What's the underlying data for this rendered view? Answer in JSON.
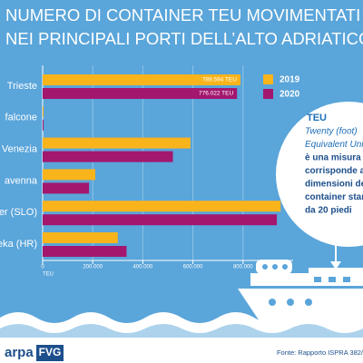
{
  "chart_data": {
    "type": "bar",
    "orientation": "horizontal",
    "title_lines": [
      "NUMERO DI CONTAINER TEU MOVIMENTATI",
      "NEI PRINCIPALI PORTI DELL’ALTO ADRIATICO"
    ],
    "categories": [
      "Trieste",
      "falcone",
      "Venezia",
      "avenna",
      "er (SLO)",
      "eka (HR)"
    ],
    "series": [
      {
        "name": "2019",
        "color": "#f9b41b",
        "values": [
          789594,
          1500,
          590000,
          210000,
          950000,
          300000
        ],
        "value_labels": [
          "789.594 TEU",
          null,
          null,
          null,
          null,
          null
        ]
      },
      {
        "name": "2020",
        "color": "#a3176e",
        "values": [
          776022,
          1000,
          520000,
          185000,
          935000,
          335000
        ],
        "value_labels": [
          "776.022 TEU",
          null,
          null,
          null,
          null,
          null
        ]
      }
    ],
    "xlim": [
      0,
      1000000
    ],
    "xticks": [
      0,
      {
        "value": 200000,
        "label": "200.000"
      },
      {
        "value": 400000,
        "label": "400.000"
      },
      {
        "value": 600000,
        "label": "600.000"
      },
      {
        "value": 800000,
        "label": "800.000"
      }
    ],
    "x_label": "TEU",
    "grid": true,
    "legend": "top-right",
    "annotation": {
      "heading": "TEU",
      "lines": [
        "Twenty (foot)",
        "Equivalent Uni",
        "è una misura c",
        "corrisponde al",
        "dimensioni de",
        "container stand",
        "da 20 piedi"
      ]
    },
    "source": "Fonte: Rapporto ISPRA 382/",
    "logo": [
      "arpa",
      "FVG"
    ]
  }
}
